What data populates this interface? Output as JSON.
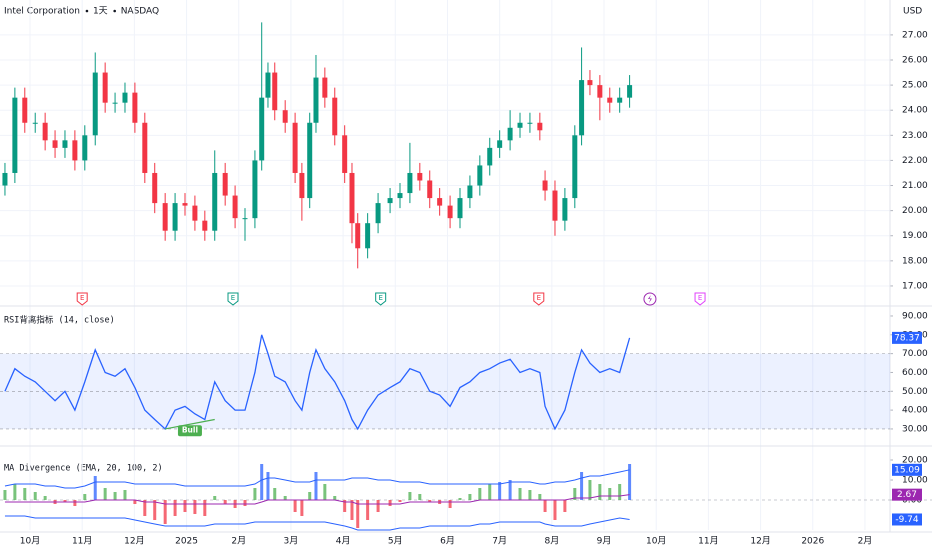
{
  "chart_data": [
    {
      "type": "candlestick",
      "title": "Intel Corporation",
      "interval": "1天",
      "exchange": "NASDAQ",
      "currency": "USD",
      "x": [
        -0.48,
        -0.29,
        -0.1,
        0.1,
        0.29,
        0.48,
        0.67,
        0.86,
        1.05,
        1.25,
        1.44,
        1.63,
        1.82,
        2.01,
        2.2,
        2.39,
        2.59,
        2.78,
        2.97,
        3.16,
        3.35,
        3.54,
        3.74,
        3.93,
        4.12,
        4.31,
        4.44,
        4.56,
        4.69,
        4.89,
        5.08,
        5.21,
        5.36,
        5.48,
        5.65,
        5.84,
        6.03,
        6.17,
        6.28,
        6.47,
        6.67,
        6.9,
        7.09,
        7.28,
        7.47,
        7.66,
        7.85,
        8.05,
        8.24,
        8.43,
        8.62,
        8.81,
        9.0,
        9.2,
        9.39,
        9.58,
        9.77,
        9.87,
        10.06,
        10.25,
        10.44,
        10.57,
        10.73,
        10.92,
        11.11,
        11.3,
        11.49
      ],
      "open": [
        21,
        21.5,
        24.5,
        23.5,
        23.5,
        22.8,
        22.5,
        22.8,
        22,
        23,
        25.5,
        24.3,
        24.3,
        24.7,
        23.5,
        21.5,
        20.3,
        19.2,
        20.3,
        20.2,
        19.6,
        19.2,
        21.5,
        20.6,
        19.7,
        19.7,
        22,
        24.5,
        25.5,
        24,
        23.5,
        21.5,
        20.5,
        23.5,
        25.3,
        24.5,
        23,
        21.5,
        19.5,
        18.5,
        19.5,
        20.3,
        20.5,
        20.7,
        21.5,
        21.2,
        20.5,
        20.2,
        19.7,
        20.5,
        21,
        21.8,
        22.5,
        22.8,
        23.3,
        23.5,
        23.5,
        21.2,
        20.8,
        19.6,
        20.5,
        23,
        25.2,
        25,
        24.5,
        24.3,
        24.5
      ],
      "high": [
        21.9,
        24.9,
        24.9,
        23.9,
        23.9,
        23.2,
        23.2,
        23.2,
        23.4,
        26.3,
        25.9,
        24.7,
        25.1,
        25.1,
        23.9,
        21.9,
        20.7,
        20.7,
        20.7,
        20.6,
        20.0,
        22.4,
        21.9,
        21.0,
        20.1,
        22.4,
        27.5,
        25.9,
        25.9,
        24.4,
        23.9,
        21.9,
        23.9,
        26.2,
        25.7,
        24.9,
        23.4,
        21.9,
        19.9,
        19.9,
        20.7,
        20.9,
        21.1,
        22.7,
        21.9,
        21.6,
        20.9,
        20.6,
        20.9,
        21.4,
        22.2,
        22.9,
        23.2,
        24.0,
        23.9,
        23.9,
        23.9,
        21.6,
        21.2,
        20.9,
        23.4,
        26.5,
        25.6,
        25.4,
        24.9,
        24.9,
        25.4
      ],
      "low": [
        20.6,
        21.1,
        23.1,
        23.1,
        22.4,
        22.1,
        22.1,
        21.6,
        21.6,
        22.6,
        23.9,
        23.9,
        23.9,
        23.1,
        21.1,
        19.9,
        18.8,
        18.8,
        19.8,
        19.2,
        18.8,
        18.8,
        20.2,
        19.3,
        18.8,
        19.3,
        21.6,
        24.1,
        23.6,
        23.1,
        21.1,
        19.6,
        20.1,
        23.1,
        24.1,
        22.6,
        21.1,
        18.7,
        17.7,
        18.1,
        19.1,
        19.9,
        20.1,
        20.3,
        20.8,
        20.1,
        19.8,
        19.3,
        19.3,
        20.1,
        20.6,
        21.4,
        22.1,
        22.4,
        22.9,
        23.1,
        22.8,
        20.4,
        19.0,
        19.2,
        20.1,
        22.6,
        24.6,
        23.6,
        23.9,
        23.9,
        24.1
      ],
      "close": [
        21.5,
        24.5,
        23.5,
        23.5,
        22.8,
        22.5,
        22.8,
        22,
        23,
        25.5,
        24.3,
        24.3,
        24.7,
        23.5,
        21.5,
        20.3,
        19.2,
        20.3,
        20.2,
        19.6,
        19.2,
        21.5,
        20.6,
        19.7,
        19.7,
        22,
        24.5,
        25.5,
        24,
        23.5,
        21.5,
        20.5,
        23.5,
        25.3,
        24.5,
        23,
        21.5,
        19.5,
        18.5,
        19.5,
        20.3,
        20.5,
        20.7,
        21.5,
        21.2,
        20.5,
        20.2,
        19.7,
        20.5,
        21,
        21.8,
        22.5,
        22.8,
        23.3,
        23.5,
        23.5,
        23.2,
        20.8,
        19.6,
        20.5,
        23,
        25.2,
        25,
        24.5,
        24.3,
        24.5,
        25
      ],
      "up_color": "#089981",
      "down_color": "#f23645",
      "xlim": [
        -0.575,
        16.48
      ],
      "xticks": [
        {
          "value": 0,
          "label": "10月"
        },
        {
          "value": 1,
          "label": "11月"
        },
        {
          "value": 2,
          "label": "12月"
        },
        {
          "value": 3,
          "label": "2025"
        },
        {
          "value": 4,
          "label": "2月"
        },
        {
          "value": 5,
          "label": "3月"
        },
        {
          "value": 6,
          "label": "4月"
        },
        {
          "value": 7,
          "label": "5月"
        },
        {
          "value": 8,
          "label": "6月"
        },
        {
          "value": 9,
          "label": "7月"
        },
        {
          "value": 10,
          "label": "8月"
        },
        {
          "value": 11,
          "label": "9月"
        },
        {
          "value": 12,
          "label": "10月"
        },
        {
          "value": 13,
          "label": "11月"
        },
        {
          "value": 14,
          "label": "12月"
        },
        {
          "value": 15,
          "label": "2026"
        },
        {
          "value": 16,
          "label": "2月"
        }
      ],
      "ylim": [
        16.44,
        28.39
      ],
      "yticks": [
        {
          "value": 17,
          "label": "17.00"
        },
        {
          "value": 18,
          "label": "18.00"
        },
        {
          "value": 19,
          "label": "19.00"
        },
        {
          "value": 20,
          "label": "20.00"
        },
        {
          "value": 21,
          "label": "21.00"
        },
        {
          "value": 22,
          "label": "22.00"
        },
        {
          "value": 23,
          "label": "23.00"
        },
        {
          "value": 24,
          "label": "24.00"
        },
        {
          "value": 25,
          "label": "25.00"
        },
        {
          "value": 26,
          "label": "26.00"
        },
        {
          "value": 27,
          "label": "27.00"
        }
      ],
      "grid": true,
      "events": [
        {
          "x": 1.0,
          "label": "E",
          "color": "#f23645"
        },
        {
          "x": 3.89,
          "label": "E",
          "color": "#089981"
        },
        {
          "x": 6.72,
          "label": "E",
          "color": "#089981"
        },
        {
          "x": 9.75,
          "label": "E",
          "color": "#f23645"
        },
        {
          "x": 11.88,
          "color": "#9c27b0"
        },
        {
          "x": 12.84,
          "label": "E",
          "color": "#e040fb"
        }
      ]
    },
    {
      "type": "line",
      "title": "RSI背离指标 (14, close)",
      "color": "#2962ff",
      "values": [
        50,
        62,
        58,
        55,
        50,
        45,
        50,
        40,
        55,
        72,
        60,
        58,
        62,
        52,
        40,
        35,
        30,
        40,
        42,
        38,
        35,
        55,
        45,
        40,
        40,
        60,
        80,
        70,
        58,
        55,
        45,
        40,
        60,
        72,
        62,
        55,
        45,
        35,
        30,
        40,
        48,
        52,
        55,
        62,
        60,
        50,
        48,
        42,
        52,
        55,
        60,
        62,
        65,
        67,
        60,
        62,
        60,
        42,
        30,
        40,
        60,
        72,
        65,
        60,
        62,
        60,
        78.37
      ],
      "ylim": [
        22,
        95.3
      ],
      "yticks": [
        {
          "value": 30,
          "label": "30.00"
        },
        {
          "value": 40,
          "label": "40.00"
        },
        {
          "value": 50,
          "label": "50.00"
        },
        {
          "value": 60,
          "label": "60.00"
        },
        {
          "value": 70,
          "label": "70.00"
        },
        {
          "value": 80,
          "label": "80.00"
        },
        {
          "value": 90,
          "label": "90.00"
        }
      ],
      "levels": [
        30,
        50,
        70
      ],
      "band_color": "rgba(41,98,255,0.09)",
      "divergence": {
        "label": "Bull",
        "x": [
          2.59,
          3.54
        ],
        "y": [
          30,
          35
        ],
        "color": "#4caf50"
      }
    },
    {
      "type": "bands-histogram",
      "title": "MA Divergence (EMA, 20, 100, 2)",
      "values": [
        5,
        8,
        6,
        4,
        2,
        -2,
        -1,
        -3,
        3,
        12,
        6,
        4,
        5,
        -2,
        -8,
        -10,
        -12,
        -8,
        -6,
        -7,
        -8,
        2,
        -2,
        -4,
        -3,
        6,
        18,
        14,
        6,
        2,
        -6,
        -8,
        4,
        14,
        8,
        2,
        -6,
        -10,
        -14,
        -10,
        -6,
        -3,
        -1,
        4,
        3,
        -1,
        -2,
        -4,
        1,
        3,
        6,
        8,
        9,
        10,
        6,
        5,
        3,
        -6,
        -10,
        -6,
        6,
        14,
        10,
        8,
        6,
        8,
        18
      ],
      "pos_color": "#4caf50",
      "neg_color": "#f23645",
      "break_color": "#2962ff",
      "upper": {
        "color": "#2962ff",
        "values": [
          7,
          8,
          8,
          8,
          7,
          7,
          6,
          6,
          7,
          9,
          9,
          9,
          9,
          8,
          8,
          8,
          8,
          8,
          7,
          7,
          7,
          7,
          7,
          7,
          7,
          8,
          10,
          11,
          11,
          10,
          9,
          9,
          9,
          10,
          10,
          10,
          10,
          11,
          11,
          11,
          10,
          10,
          9,
          9,
          9,
          8,
          8,
          8,
          8,
          8,
          8,
          8,
          8,
          9,
          9,
          9,
          8,
          8,
          9,
          9,
          10,
          11,
          12,
          12,
          13,
          14,
          15.09
        ]
      },
      "middle": {
        "color": "#9c27b0",
        "values": [
          -1,
          -1,
          -1,
          -1,
          -1,
          -1,
          -1,
          -1,
          -1,
          0,
          0,
          0,
          0,
          0,
          -1,
          -1,
          -2,
          -2,
          -2,
          -2,
          -2,
          -2,
          -2,
          -2,
          -2,
          -2,
          -1,
          0,
          0,
          0,
          0,
          0,
          0,
          0,
          0,
          0,
          -1,
          -1,
          -2,
          -2,
          -2,
          -2,
          -2,
          -1,
          -1,
          -1,
          -1,
          -1,
          -1,
          -1,
          0,
          0,
          0,
          0,
          0,
          0,
          0,
          0,
          0,
          0,
          1,
          1,
          1,
          2,
          2,
          2,
          2.67
        ]
      },
      "lower": {
        "color": "#2962ff",
        "values": [
          -8,
          -8,
          -8,
          -9,
          -9,
          -9,
          -9,
          -9,
          -9,
          -9,
          -9,
          -9,
          -9,
          -10,
          -11,
          -12,
          -13,
          -13,
          -13,
          -13,
          -13,
          -12,
          -12,
          -12,
          -12,
          -11,
          -11,
          -11,
          -11,
          -11,
          -11,
          -11,
          -11,
          -11,
          -11,
          -12,
          -13,
          -14,
          -15,
          -15,
          -15,
          -15,
          -14,
          -14,
          -14,
          -13,
          -13,
          -13,
          -13,
          -13,
          -12,
          -12,
          -11,
          -11,
          -11,
          -11,
          -11,
          -12,
          -13,
          -13,
          -13,
          -13,
          -12,
          -11,
          -10,
          -9,
          -9.74
        ]
      },
      "ylim": [
        -17,
        27
      ],
      "yticks": [
        {
          "value": 0,
          "label": "0.00"
        },
        {
          "value": 10,
          "label": "10.00"
        },
        {
          "value": 20,
          "label": "20.00"
        }
      ]
    }
  ]
}
